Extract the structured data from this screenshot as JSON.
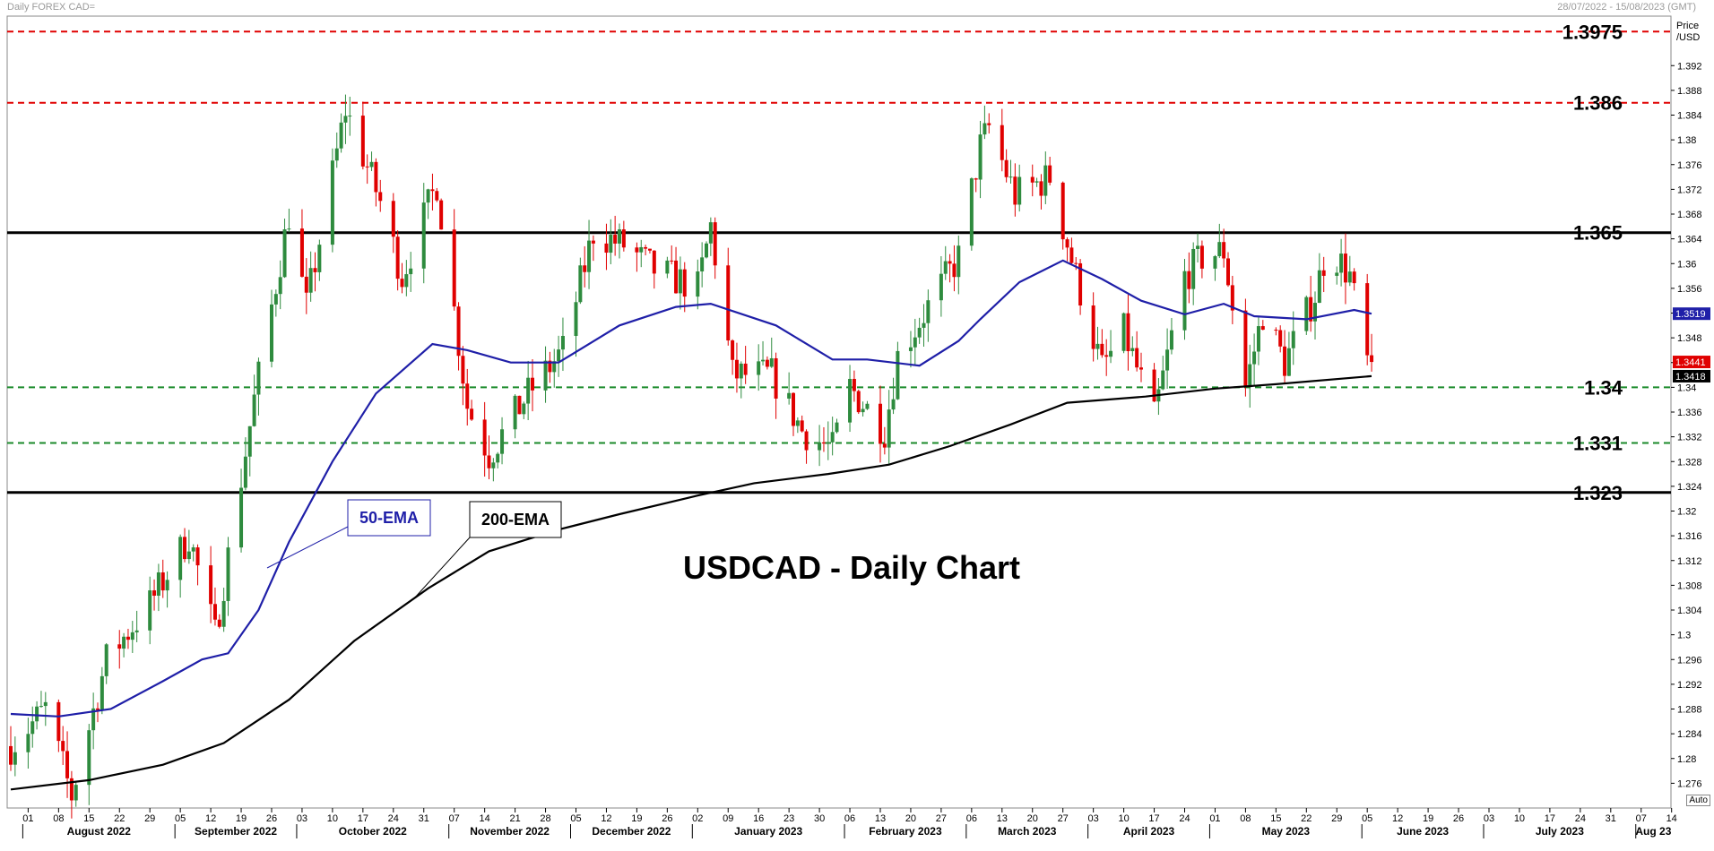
{
  "header": {
    "left": "Daily FOREX CAD=",
    "right": "28/07/2022 - 15/08/2023 (GMT)"
  },
  "price_axis": {
    "title_line1": "Price",
    "title_line2": "/USD",
    "auto_label": "Auto"
  },
  "chart_data": {
    "type": "candlestick",
    "title": "USDCAD - Daily Chart",
    "ylim": [
      1.272,
      1.4
    ],
    "y_ticks": [
      "1.392",
      "1.388",
      "1.384",
      "1.38",
      "1.376",
      "1.372",
      "1.368",
      "1.364",
      "1.36",
      "1.356",
      "1.352",
      "1.348",
      "1.344",
      "1.34",
      "1.336",
      "1.332",
      "1.328",
      "1.324",
      "1.32",
      "1.316",
      "1.312",
      "1.308",
      "1.304",
      "1.3",
      "1.296",
      "1.292",
      "1.288",
      "1.284",
      "1.28",
      "1.276"
    ],
    "x_ticks": [
      "01",
      "08",
      "15",
      "22",
      "29",
      "05",
      "12",
      "19",
      "26",
      "03",
      "10",
      "17",
      "24",
      "31",
      "07",
      "14",
      "21",
      "28",
      "05",
      "12",
      "19",
      "26",
      "02",
      "09",
      "16",
      "23",
      "30",
      "06",
      "13",
      "20",
      "27",
      "06",
      "13",
      "20",
      "27",
      "03",
      "10",
      "17",
      "24",
      "01",
      "08",
      "15",
      "22",
      "29",
      "05",
      "12",
      "19",
      "26",
      "03",
      "10",
      "17",
      "24",
      "31",
      "07",
      "14"
    ],
    "months": [
      {
        "label": "August 2022",
        "tick_index": 0
      },
      {
        "label": "September 2022",
        "tick_index": 5
      },
      {
        "label": "October 2022",
        "tick_index": 9
      },
      {
        "label": "November 2022",
        "tick_index": 14
      },
      {
        "label": "December 2022",
        "tick_index": 18
      },
      {
        "label": "January 2023",
        "tick_index": 22
      },
      {
        "label": "February 2023",
        "tick_index": 27
      },
      {
        "label": "March 2023",
        "tick_index": 31
      },
      {
        "label": "April 2023",
        "tick_index": 35
      },
      {
        "label": "May 2023",
        "tick_index": 39
      },
      {
        "label": "June 2023",
        "tick_index": 44
      },
      {
        "label": "July 2023",
        "tick_index": 48
      },
      {
        "label": "Aug 23",
        "tick_index": 53
      }
    ],
    "ohlc_anchors": [
      [
        "2022-07-28",
        1.282
      ],
      [
        "2022-08-05",
        1.288
      ],
      [
        "2022-08-11",
        1.274
      ],
      [
        "2022-08-19",
        1.296
      ],
      [
        "2022-08-29",
        1.305
      ],
      [
        "2022-09-07",
        1.316
      ],
      [
        "2022-09-13",
        1.3
      ],
      [
        "2022-09-22",
        1.338
      ],
      [
        "2022-09-30",
        1.368
      ],
      [
        "2022-10-04",
        1.353
      ],
      [
        "2022-10-13",
        1.385
      ],
      [
        "2022-10-21",
        1.37
      ],
      [
        "2022-10-26",
        1.358
      ],
      [
        "2022-11-03",
        1.373
      ],
      [
        "2022-11-10",
        1.337
      ],
      [
        "2022-11-15",
        1.329
      ],
      [
        "2022-11-24",
        1.339
      ],
      [
        "2022-12-02",
        1.346
      ],
      [
        "2022-12-09",
        1.365
      ],
      [
        "2022-12-16",
        1.363
      ],
      [
        "2022-12-23",
        1.359
      ],
      [
        "2023-01-02",
        1.356
      ],
      [
        "2023-01-05",
        1.366
      ],
      [
        "2023-01-10",
        1.342
      ],
      [
        "2023-01-19",
        1.342
      ],
      [
        "2023-01-26",
        1.333
      ],
      [
        "2023-02-02",
        1.33
      ],
      [
        "2023-02-06",
        1.34
      ],
      [
        "2023-02-14",
        1.333
      ],
      [
        "2023-02-17",
        1.345
      ],
      [
        "2023-02-24",
        1.353
      ],
      [
        "2023-03-03",
        1.361
      ],
      [
        "2023-03-08",
        1.379
      ],
      [
        "2023-03-10",
        1.382
      ],
      [
        "2023-03-16",
        1.371
      ],
      [
        "2023-03-24",
        1.374
      ],
      [
        "2023-03-30",
        1.358
      ],
      [
        "2023-04-05",
        1.343
      ],
      [
        "2023-04-10",
        1.349
      ],
      [
        "2023-04-17",
        1.335
      ],
      [
        "2023-04-24",
        1.358
      ],
      [
        "2023-04-28",
        1.361
      ],
      [
        "2023-05-03",
        1.362
      ],
      [
        "2023-05-08",
        1.34
      ],
      [
        "2023-05-12",
        1.352
      ],
      [
        "2023-05-17",
        1.344
      ],
      [
        "2023-05-24",
        1.355
      ],
      [
        "2023-05-27",
        1.363
      ],
      [
        "2023-06-01",
        1.358
      ],
      [
        "2023-06-05",
        1.344
      ],
      [
        "2023-06-06",
        1.3441
      ]
    ],
    "series": [
      {
        "name": "50-EMA",
        "color": "#1f1fa8",
        "label": "50-EMA",
        "values": [
          [
            "2022-07-28",
            1.2872
          ],
          [
            "2022-08-08",
            1.2868
          ],
          [
            "2022-08-20",
            1.288
          ],
          [
            "2022-09-01",
            1.2925
          ],
          [
            "2022-09-10",
            1.296
          ],
          [
            "2022-09-16",
            1.297
          ],
          [
            "2022-09-23",
            1.304
          ],
          [
            "2022-09-30",
            1.315
          ],
          [
            "2022-10-10",
            1.328
          ],
          [
            "2022-10-20",
            1.339
          ],
          [
            "2022-11-02",
            1.347
          ],
          [
            "2022-11-10",
            1.346
          ],
          [
            "2022-11-20",
            1.344
          ],
          [
            "2022-12-01",
            1.344
          ],
          [
            "2022-12-15",
            1.35
          ],
          [
            "2022-12-28",
            1.353
          ],
          [
            "2023-01-05",
            1.3535
          ],
          [
            "2023-01-20",
            1.35
          ],
          [
            "2023-02-02",
            1.3445
          ],
          [
            "2023-02-10",
            1.3445
          ],
          [
            "2023-02-22",
            1.3435
          ],
          [
            "2023-03-03",
            1.3475
          ],
          [
            "2023-03-08",
            1.351
          ],
          [
            "2023-03-17",
            1.357
          ],
          [
            "2023-03-27",
            1.3605
          ],
          [
            "2023-04-05",
            1.3575
          ],
          [
            "2023-04-14",
            1.354
          ],
          [
            "2023-04-24",
            1.3518
          ],
          [
            "2023-05-03",
            1.3535
          ],
          [
            "2023-05-10",
            1.3515
          ],
          [
            "2023-05-22",
            1.351
          ],
          [
            "2023-06-02",
            1.3525
          ],
          [
            "2023-06-06",
            1.3519
          ]
        ]
      },
      {
        "name": "200-EMA",
        "color": "#000000",
        "label": "200-EMA",
        "values": [
          [
            "2022-07-28",
            1.275
          ],
          [
            "2022-08-15",
            1.2765
          ],
          [
            "2022-09-01",
            1.279
          ],
          [
            "2022-09-15",
            1.2825
          ],
          [
            "2022-09-30",
            1.2895
          ],
          [
            "2022-10-15",
            1.299
          ],
          [
            "2022-11-01",
            1.3075
          ],
          [
            "2022-11-15",
            1.3135
          ],
          [
            "2022-12-01",
            1.317
          ],
          [
            "2022-12-15",
            1.3195
          ],
          [
            "2023-01-02",
            1.3225
          ],
          [
            "2023-01-15",
            1.3245
          ],
          [
            "2023-02-01",
            1.326
          ],
          [
            "2023-02-15",
            1.3275
          ],
          [
            "2023-03-01",
            1.3305
          ],
          [
            "2023-03-15",
            1.334
          ],
          [
            "2023-03-28",
            1.3375
          ],
          [
            "2023-04-15",
            1.3385
          ],
          [
            "2023-05-01",
            1.3398
          ],
          [
            "2023-05-15",
            1.3405
          ],
          [
            "2023-06-06",
            1.3418
          ]
        ]
      }
    ],
    "horizontal_levels": [
      {
        "value": 1.3975,
        "label": "1.3975",
        "style": "red-dashed"
      },
      {
        "value": 1.386,
        "label": "1.386",
        "style": "red-dashed"
      },
      {
        "value": 1.365,
        "label": "1.365",
        "style": "black-solid"
      },
      {
        "value": 1.34,
        "label": "1.34",
        "style": "green-dashed"
      },
      {
        "value": 1.331,
        "label": "1.331",
        "style": "green-dashed"
      },
      {
        "value": 1.323,
        "label": "1.323",
        "style": "black-solid"
      }
    ],
    "price_markers": [
      {
        "value": 1.3519,
        "label": "1.3519",
        "bg": "#1f1fa8",
        "fg": "#ffffff"
      },
      {
        "value": 1.3441,
        "label": "1.3441",
        "bg": "#e00000",
        "fg": "#ffffff"
      },
      {
        "value": 1.3418,
        "label": "1.3418",
        "bg": "#000000",
        "fg": "#ffffff"
      }
    ],
    "annotations": [
      {
        "label": "50-EMA",
        "color": "#1f1fa8"
      },
      {
        "label": "200-EMA",
        "color": "#000000"
      }
    ],
    "colors": {
      "up": "#2e8b3e",
      "down": "#e00000",
      "res": "#e00000",
      "sup": "#1a8a2a"
    }
  }
}
